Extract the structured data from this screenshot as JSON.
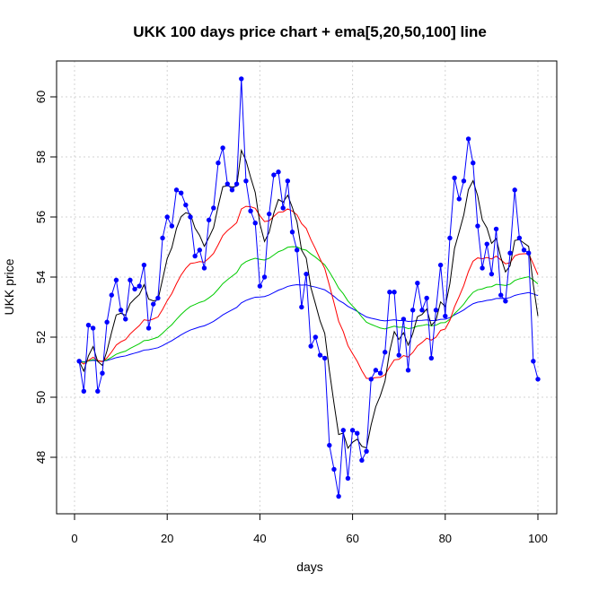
{
  "chart_data": {
    "type": "line",
    "title": "UKK 100 days price chart + ema[5,20,50,100] line",
    "xlabel": "days",
    "ylabel": "UKK price",
    "xlim": [
      0,
      100
    ],
    "ylim": [
      46.3,
      61.0
    ],
    "x_ticks": [
      "0",
      "20",
      "40",
      "60",
      "80",
      "100"
    ],
    "y_ticks": [
      "48",
      "50",
      "52",
      "54",
      "56",
      "58",
      "60"
    ],
    "grid": true,
    "price": {
      "name": "price",
      "color": "#0000ff",
      "values": [
        51.2,
        50.2,
        52.4,
        52.3,
        50.2,
        50.8,
        52.5,
        53.4,
        53.9,
        52.9,
        52.6,
        53.9,
        53.6,
        53.7,
        54.4,
        52.3,
        53.1,
        53.3,
        55.3,
        56.0,
        55.7,
        56.9,
        56.8,
        56.4,
        56.0,
        54.7,
        54.9,
        54.3,
        55.9,
        56.3,
        57.8,
        58.3,
        57.1,
        56.9,
        57.1,
        60.6,
        57.2,
        56.2,
        55.8,
        53.7,
        54.0,
        56.1,
        57.4,
        57.5,
        56.3,
        57.2,
        55.5,
        54.9,
        53.0,
        54.1,
        51.7,
        52.0,
        51.4,
        51.3,
        48.4,
        47.6,
        46.7,
        48.9,
        47.3,
        48.9,
        48.8,
        47.9,
        48.2,
        50.6,
        50.9,
        50.8,
        51.5,
        53.5,
        53.5,
        51.4,
        52.6,
        50.9,
        52.9,
        53.8,
        52.9,
        53.3,
        51.3,
        52.9,
        54.4,
        52.7,
        55.3,
        57.3,
        56.6,
        57.2,
        58.6,
        57.8,
        55.7,
        54.3,
        55.1,
        54.1,
        55.6,
        53.4,
        53.2,
        54.8,
        56.9,
        55.3,
        54.9,
        54.8,
        51.2,
        50.6
      ]
    },
    "ema_series": [
      {
        "name": "ema5",
        "period": 5,
        "color": "#000000"
      },
      {
        "name": "ema20",
        "period": 20,
        "color": "#ff0000"
      },
      {
        "name": "ema50",
        "period": 50,
        "color": "#00cc00"
      },
      {
        "name": "ema100",
        "period": 100,
        "color": "#0000ff"
      }
    ]
  }
}
